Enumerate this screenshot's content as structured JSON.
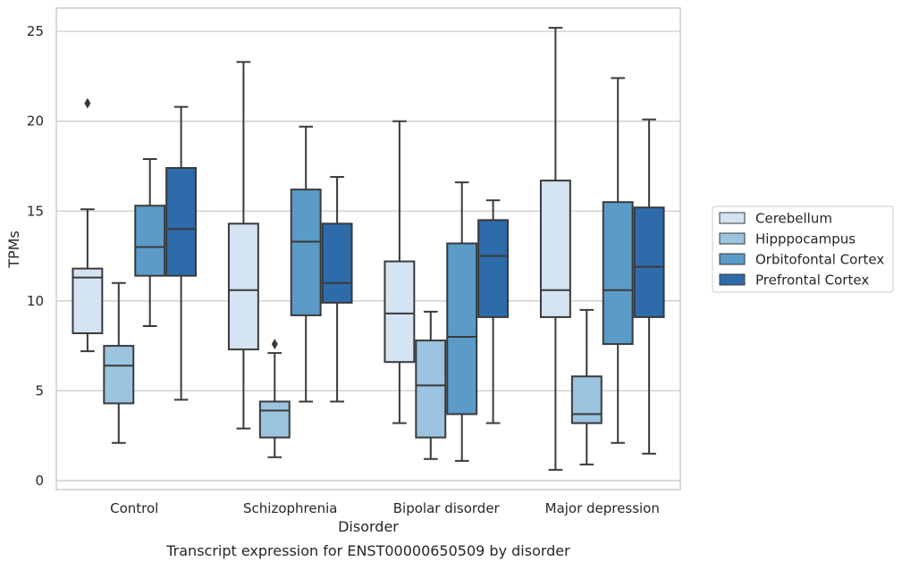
{
  "chart_data": {
    "type": "boxplot",
    "title": "",
    "caption": "Transcript expression for ENST00000650509 by disorder",
    "xlabel": "Disorder",
    "ylabel": "TPMs",
    "ylim": [
      -0.5,
      26.3
    ],
    "yticks": [
      0,
      5,
      10,
      15,
      20,
      25
    ],
    "grid": true,
    "legend_position": "right",
    "categories": [
      "Control",
      "Schizophrenia",
      "Bipolar disorder",
      "Major depression"
    ],
    "series": [
      {
        "name": "Cerebellum",
        "color": "#d4e3f2",
        "boxes": [
          {
            "whisker_low": 7.2,
            "q1": 8.2,
            "median": 11.3,
            "q3": 11.8,
            "whisker_high": 15.1,
            "outliers": [
              21.0
            ]
          },
          {
            "whisker_low": 2.9,
            "q1": 7.3,
            "median": 10.6,
            "q3": 14.3,
            "whisker_high": 23.3,
            "outliers": []
          },
          {
            "whisker_low": 3.2,
            "q1": 6.6,
            "median": 9.3,
            "q3": 12.2,
            "whisker_high": 20.0,
            "outliers": []
          },
          {
            "whisker_low": 0.6,
            "q1": 9.1,
            "median": 10.6,
            "q3": 16.7,
            "whisker_high": 25.2,
            "outliers": []
          }
        ]
      },
      {
        "name": "Hipppocampus",
        "color": "#9ac4df",
        "boxes": [
          {
            "whisker_low": 2.1,
            "q1": 4.3,
            "median": 6.4,
            "q3": 7.5,
            "whisker_high": 11.0,
            "outliers": []
          },
          {
            "whisker_low": 1.3,
            "q1": 2.4,
            "median": 3.9,
            "q3": 4.4,
            "whisker_high": 7.1,
            "outliers": [
              7.6
            ]
          },
          {
            "whisker_low": 1.2,
            "q1": 2.4,
            "median": 5.3,
            "q3": 7.8,
            "whisker_high": 9.4,
            "outliers": []
          },
          {
            "whisker_low": 0.9,
            "q1": 3.2,
            "median": 3.7,
            "q3": 5.8,
            "whisker_high": 9.5,
            "outliers": []
          }
        ]
      },
      {
        "name": "Orbitofontal Cortex",
        "color": "#5a9bc8",
        "boxes": [
          {
            "whisker_low": 8.6,
            "q1": 11.4,
            "median": 13.0,
            "q3": 15.3,
            "whisker_high": 17.9,
            "outliers": []
          },
          {
            "whisker_low": 4.4,
            "q1": 9.2,
            "median": 13.3,
            "q3": 16.2,
            "whisker_high": 19.7,
            "outliers": []
          },
          {
            "whisker_low": 1.1,
            "q1": 3.7,
            "median": 8.0,
            "q3": 13.2,
            "whisker_high": 16.6,
            "outliers": []
          },
          {
            "whisker_low": 2.1,
            "q1": 7.6,
            "median": 10.6,
            "q3": 15.5,
            "whisker_high": 22.4,
            "outliers": []
          }
        ]
      },
      {
        "name": "Prefrontal Cortex",
        "color": "#2d6bab",
        "boxes": [
          {
            "whisker_low": 4.5,
            "q1": 11.4,
            "median": 14.0,
            "q3": 17.4,
            "whisker_high": 20.8,
            "outliers": []
          },
          {
            "whisker_low": 4.4,
            "q1": 9.9,
            "median": 11.0,
            "q3": 14.3,
            "whisker_high": 16.9,
            "outliers": []
          },
          {
            "whisker_low": 3.2,
            "q1": 9.1,
            "median": 12.5,
            "q3": 14.5,
            "whisker_high": 15.6,
            "outliers": []
          },
          {
            "whisker_low": 1.5,
            "q1": 9.1,
            "median": 11.9,
            "q3": 15.2,
            "whisker_high": 20.1,
            "outliers": []
          }
        ]
      }
    ]
  }
}
